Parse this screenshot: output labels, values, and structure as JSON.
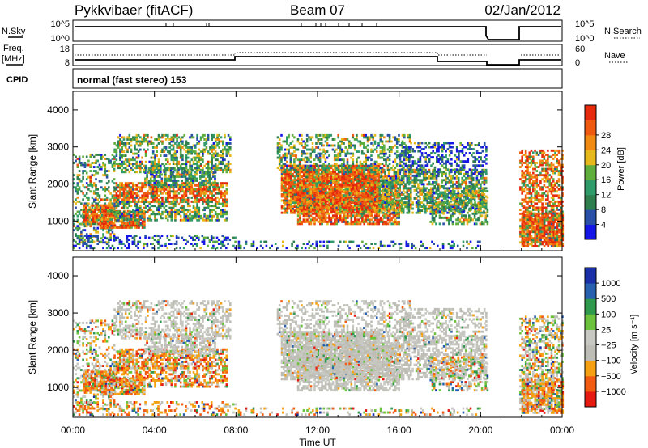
{
  "header": {
    "station": "Pykkvibaer (fitACF)",
    "beam": "Beam 07",
    "date": "02/Jan/2012"
  },
  "strip_labels": {
    "nsky": "N.Sky",
    "nsky_top": "10^5",
    "nsky_bottom": "10^0",
    "nsearch": "N.Search",
    "nsearch_top": "10^5",
    "nsearch_bottom": "10^0",
    "freq": "Freq.",
    "freq_unit": "[MHz]",
    "freq_top": "18",
    "freq_bottom": "8",
    "nave": "Nave",
    "nave_top": "60",
    "nave_bottom": "0",
    "cpid": "CPID",
    "cpid_text": "normal (fast stereo) 153"
  },
  "colors": {
    "power": [
      "#1515e6",
      "#2a4fa8",
      "#2f7e4e",
      "#2f9a6a",
      "#5fae3c",
      "#e6b81c",
      "#f08a12",
      "#ef5a10",
      "#e62a0e"
    ],
    "velocity": [
      "#e51b12",
      "#f15c12",
      "#f5a012",
      "#bdbdb5",
      "#c8c8c2",
      "#6cc23c",
      "#2f9a4e",
      "#2860b0",
      "#1b2fa8"
    ]
  },
  "chart_data": [
    {
      "type": "heatmap",
      "name": "power",
      "ylabel": "Slant Range [km]",
      "ylim": [
        200,
        4500
      ],
      "yticks": [
        "1000",
        "2000",
        "3000",
        "4000"
      ],
      "xlim_hours": [
        0,
        24
      ],
      "xticks": [
        "00:00",
        "04:00",
        "08:00",
        "12:00",
        "16:00",
        "20:00",
        "00:00"
      ],
      "colorbar_label": "Power [dB]",
      "colorbar_ticks": [
        "4",
        "8",
        "12",
        "16",
        "20",
        "24",
        "28"
      ]
    },
    {
      "type": "heatmap",
      "name": "velocity",
      "ylabel": "Slant Range [km]",
      "ylim": [
        200,
        4500
      ],
      "yticks": [
        "1000",
        "2000",
        "3000",
        "4000"
      ],
      "xlabel": "Time UT",
      "xlim_hours": [
        0,
        24
      ],
      "xticks": [
        "00:00",
        "04:00",
        "08:00",
        "12:00",
        "16:00",
        "20:00",
        "00:00"
      ],
      "colorbar_label": "Velocity [m s⁻¹]",
      "colorbar_ticks": [
        "1000",
        "500",
        "100",
        "25",
        "−25",
        "−100",
        "−500",
        "−1000"
      ]
    }
  ]
}
